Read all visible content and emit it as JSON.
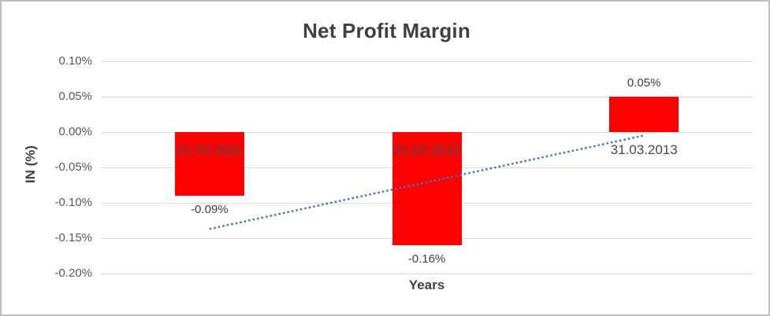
{
  "window": {
    "background": "#ffffff",
    "border_color": "#bfbfbf"
  },
  "chart_data": {
    "type": "bar",
    "title": "Net Profit Margin",
    "xlabel": "Years",
    "ylabel": "IN (%)",
    "categories": [
      "31.03.2011",
      "31.03.2012",
      "31.03.2013"
    ],
    "values": [
      -0.09,
      -0.16,
      0.05
    ],
    "value_labels": [
      "-0.09%",
      "-0.16%",
      "0.05%"
    ],
    "ylim": [
      -0.2,
      0.1
    ],
    "yticks": [
      0.1,
      0.05,
      0.0,
      -0.05,
      -0.1,
      -0.15,
      -0.2
    ],
    "ytick_labels": [
      "0.10%",
      "0.05%",
      "0.00%",
      "-0.05%",
      "-0.10%",
      "-0.15%",
      "-0.20%"
    ],
    "grid": true,
    "legend": "none",
    "bar_color": "#ff0000",
    "gridline_color": "#d9d9d9",
    "tick_label_color": "#595959",
    "text_color": "#404040",
    "trendline": {
      "style": "dotted",
      "color": "#4472c4",
      "start_value": -0.137,
      "end_value": -0.005
    }
  }
}
